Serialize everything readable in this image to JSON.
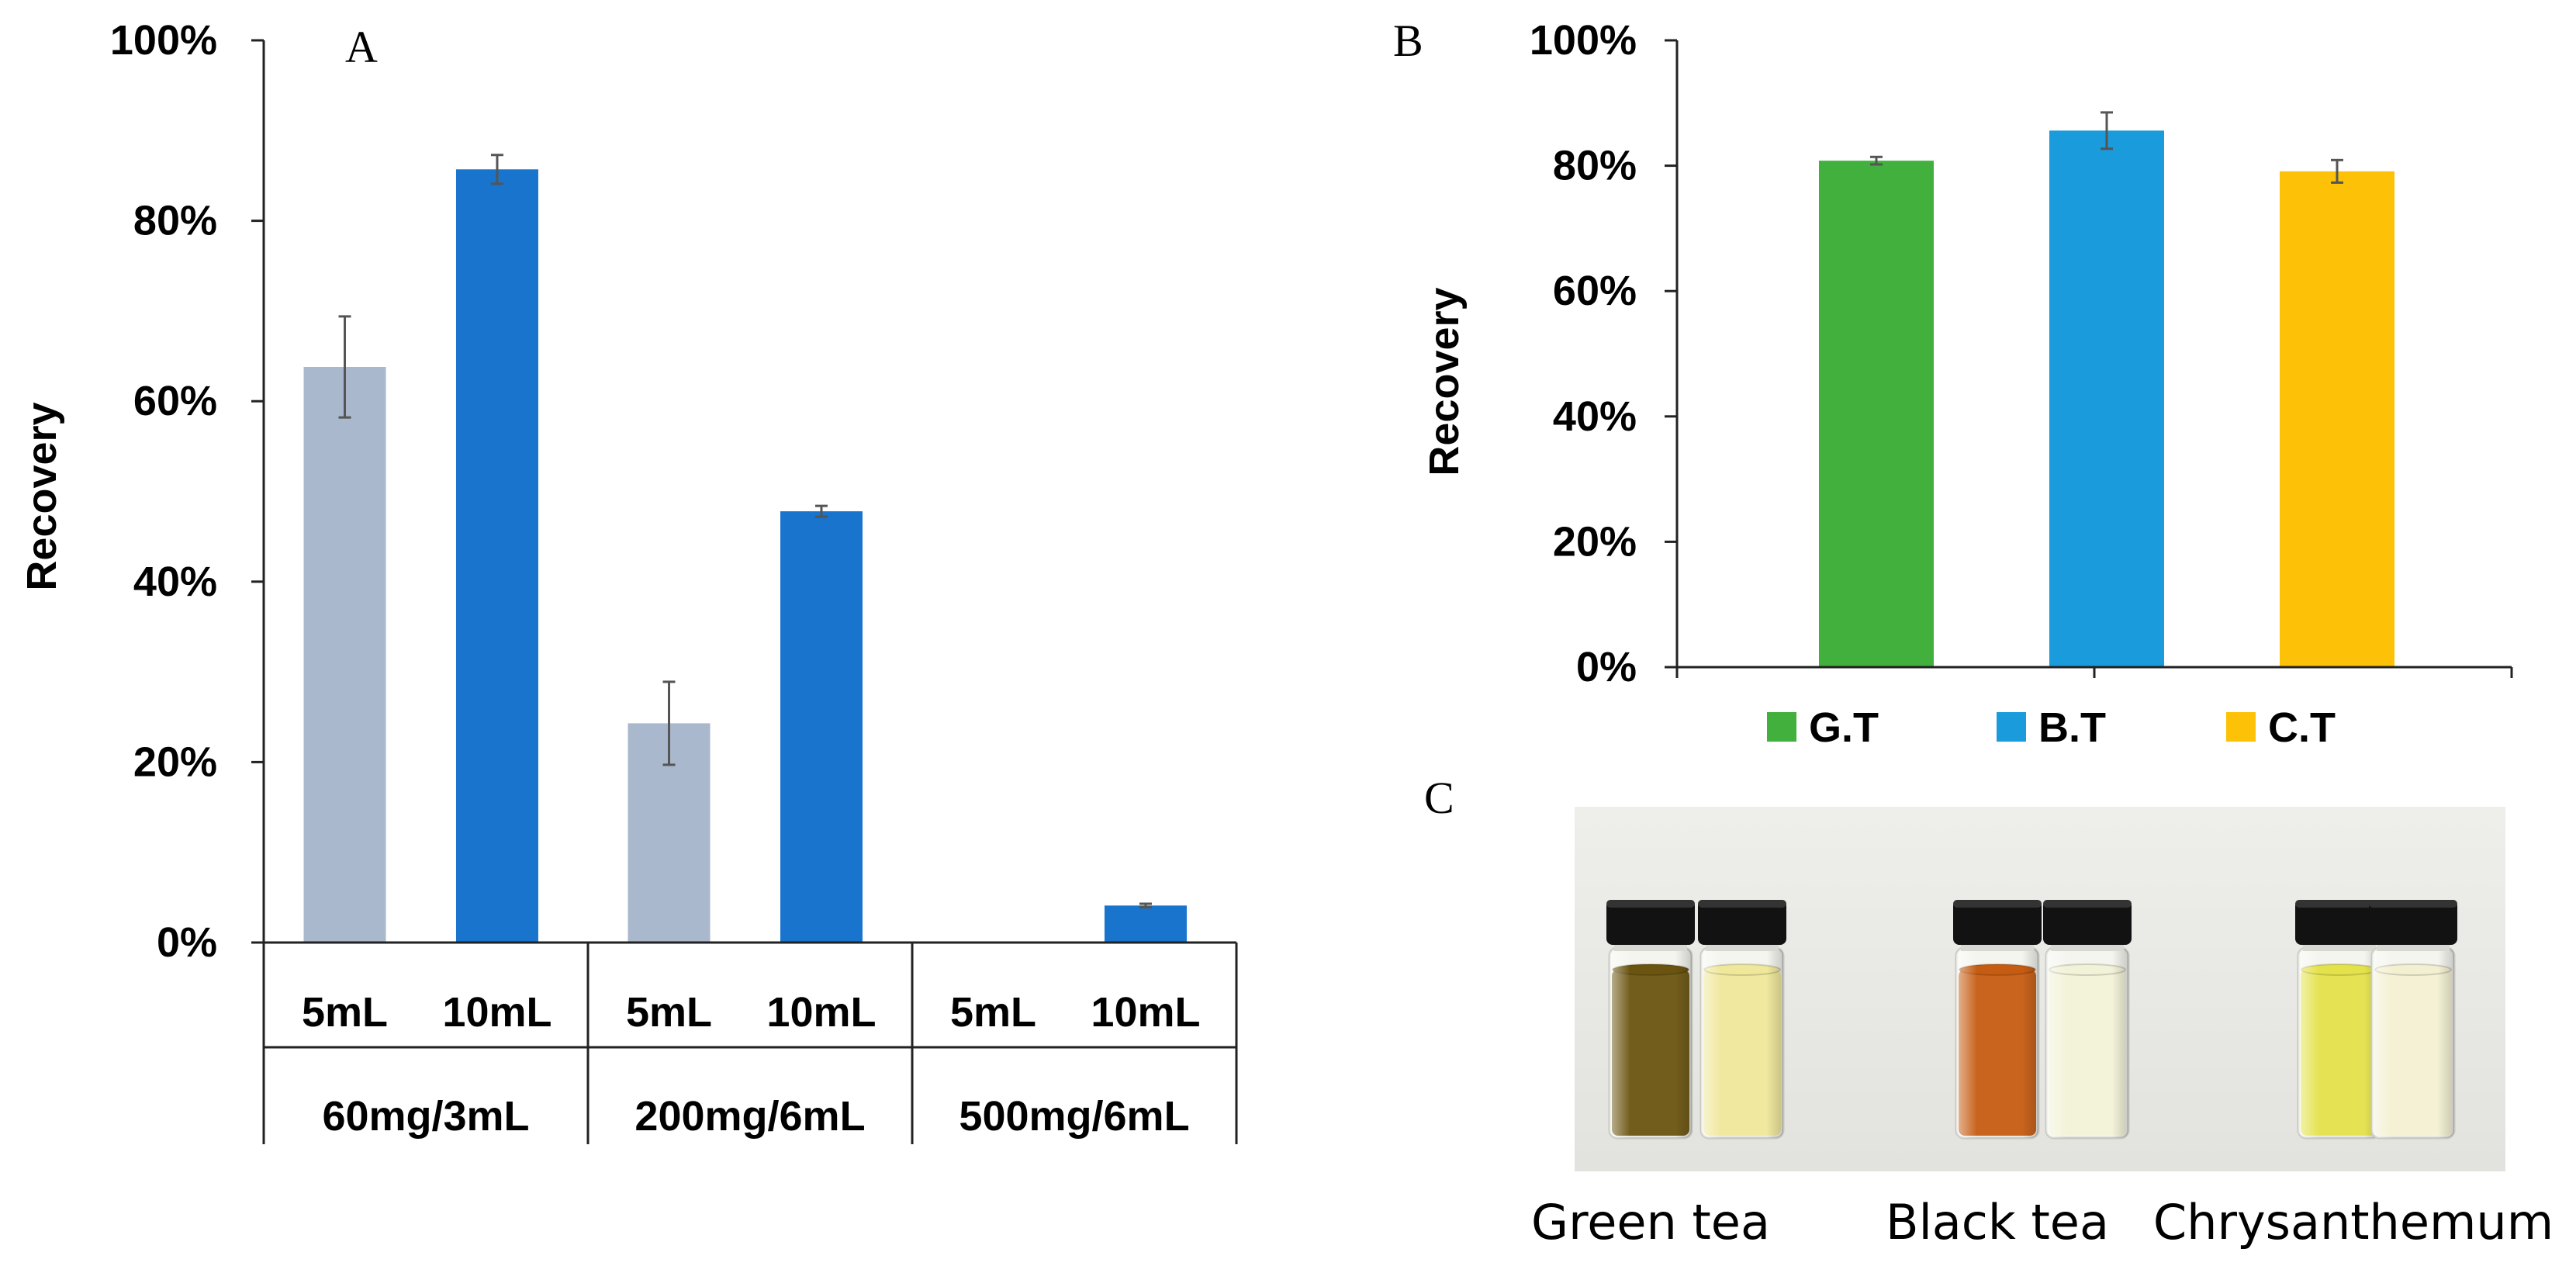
{
  "chart_data": [
    {
      "panel": "A",
      "type": "bar",
      "ylabel": "Recovery",
      "ylim": [
        0,
        100
      ],
      "yticks": [
        "0%",
        "20%",
        "40%",
        "60%",
        "80%",
        "100%"
      ],
      "groups": [
        "60mg/3mL",
        "200mg/6mL",
        "500mg/6mL"
      ],
      "subcategories": [
        "5mL",
        "10mL"
      ],
      "series": [
        {
          "name": "5mL",
          "color": "#a9b8cc",
          "values": [
            63.8,
            24.3,
            0
          ],
          "errors": [
            5.6,
            4.6,
            0
          ]
        },
        {
          "name": "10mL",
          "color": "#1874cd",
          "values": [
            85.7,
            47.8,
            4.1
          ],
          "errors": [
            1.6,
            0.6,
            0.2
          ]
        }
      ]
    },
    {
      "panel": "B",
      "type": "bar",
      "ylabel": "Recovery",
      "ylim": [
        0,
        100
      ],
      "yticks": [
        "0%",
        "20%",
        "40%",
        "60%",
        "80%",
        "100%"
      ],
      "categories": [
        "G.T",
        "B.T",
        "C.T"
      ],
      "values": [
        80.8,
        85.6,
        79.1
      ],
      "errors": [
        0.6,
        2.9,
        1.8
      ],
      "colors": [
        "#41b03c",
        "#1a9bdc",
        "#fdc107"
      ],
      "legend": [
        "G.T",
        "B.T",
        "C.T"
      ]
    }
  ],
  "photo": {
    "panel": "C",
    "labels": [
      "Green tea",
      "Black tea",
      "Chrysanthemum"
    ],
    "liquid_colors": [
      [
        "#6a5410",
        "#efe79a"
      ],
      [
        "#c65c12",
        "#f2f2d8"
      ],
      [
        "#e4e24a",
        "#f3f0d2"
      ]
    ]
  }
}
